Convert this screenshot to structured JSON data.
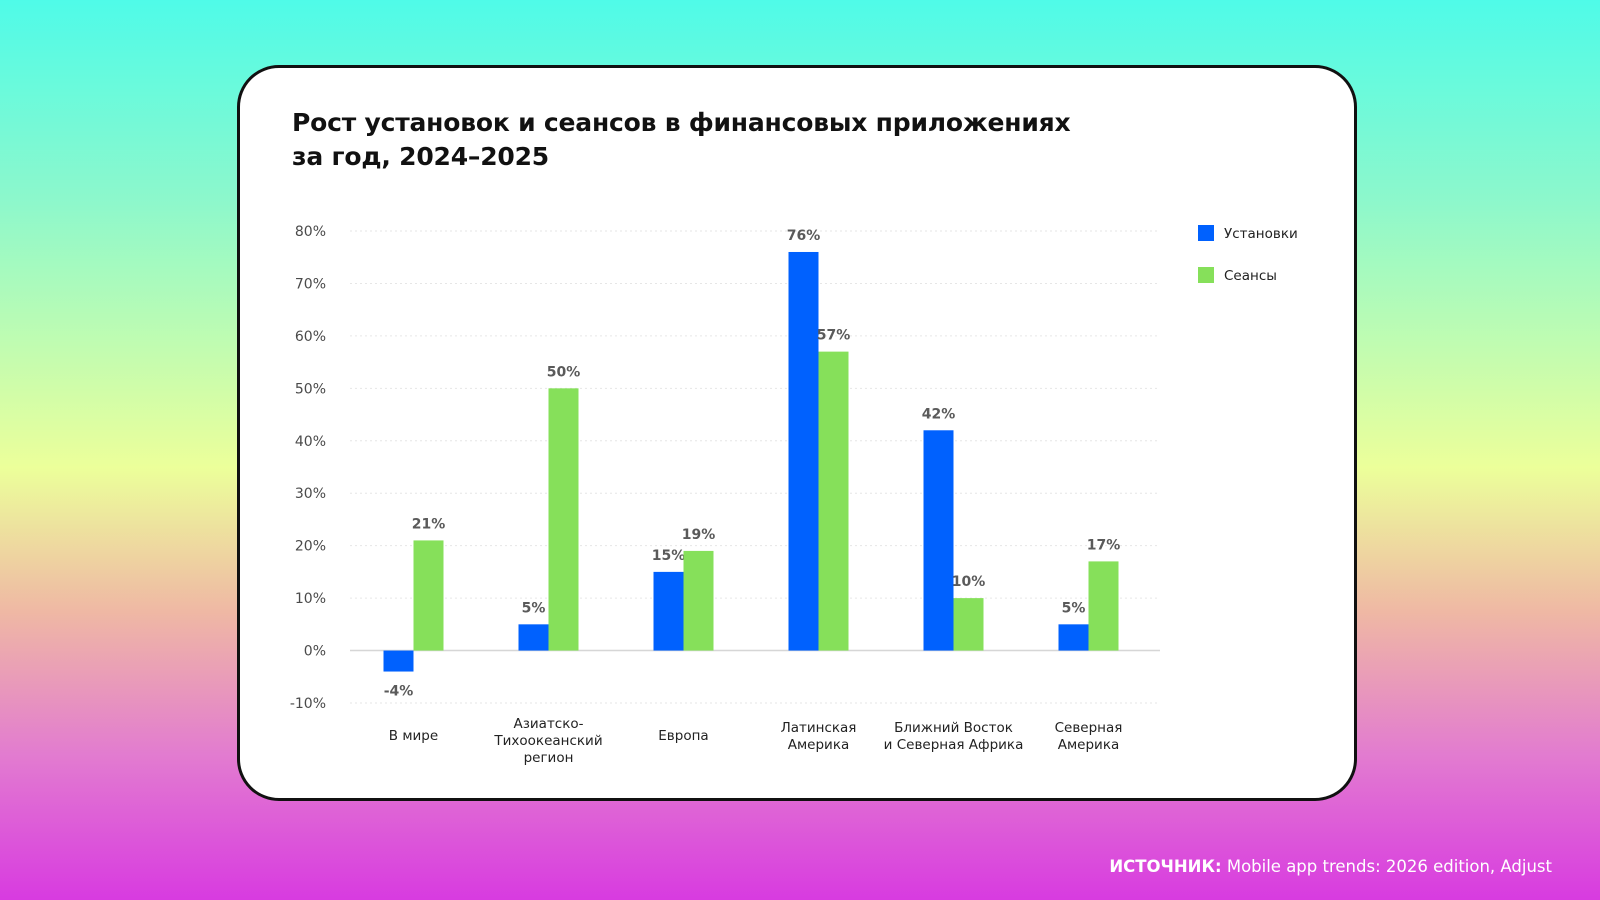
{
  "card": {
    "title_line1": "Рост установок и сеансов в финансовых приложениях",
    "title_line2": "за год, 2024–2025"
  },
  "source": {
    "label": "ИСТОЧНИК:",
    "text": "Mobile app trends: 2026 edition, Adjust"
  },
  "colors": {
    "installs": "#0061fe",
    "sessions": "#86e05a"
  },
  "chart_data": {
    "type": "bar",
    "title": "Рост установок и сеансов в финансовых приложениях за год, 2024–2025",
    "categories": [
      [
        "В мире"
      ],
      [
        "Азиатско-",
        "Тихоокеанский",
        "регион"
      ],
      [
        "Европа"
      ],
      [
        "Латинская",
        "Америка"
      ],
      [
        "Ближний Восток",
        "и Северная Африка"
      ],
      [
        "Северная",
        "Америка"
      ]
    ],
    "series": [
      {
        "name": "Установки",
        "values": [
          -4,
          5,
          15,
          76,
          42,
          5
        ],
        "labels": [
          "-4%",
          "5%",
          "15%",
          "76%",
          "42%",
          "5%"
        ]
      },
      {
        "name": "Сеансы",
        "values": [
          21,
          50,
          19,
          57,
          10,
          17
        ],
        "labels": [
          "21%",
          "50%",
          "19%",
          "57%",
          "10%",
          "17%"
        ]
      }
    ],
    "ylim": [
      -10,
      80
    ],
    "yticks": [
      80,
      70,
      60,
      50,
      40,
      30,
      20,
      10,
      0,
      -10
    ],
    "ytick_labels": [
      "80%",
      "70%",
      "60%",
      "50%",
      "40%",
      "30%",
      "20%",
      "10%",
      "0%",
      "-10%"
    ],
    "grid": true,
    "legend": "top-right"
  }
}
